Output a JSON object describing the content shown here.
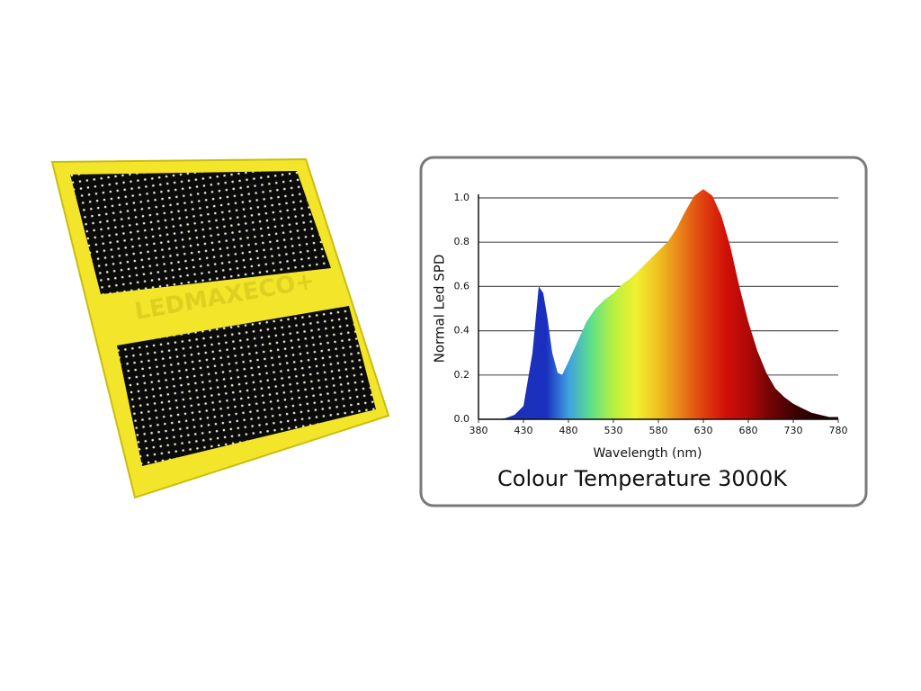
{
  "product": {
    "brand": "LEDMAXECO+"
  },
  "chart_data": {
    "type": "area",
    "title": "Colour Temperature 3000K",
    "x_label": "Wavelength (nm)",
    "y_label": "Normal Led SPD",
    "x": [
      380,
      390,
      400,
      410,
      420,
      430,
      440,
      447,
      452,
      457,
      462,
      468,
      473,
      480,
      490,
      500,
      510,
      520,
      530,
      540,
      550,
      560,
      570,
      580,
      590,
      600,
      610,
      620,
      630,
      640,
      650,
      660,
      670,
      680,
      690,
      700,
      710,
      720,
      730,
      740,
      750,
      760,
      770,
      780
    ],
    "values": [
      0,
      0,
      0,
      0.005,
      0.02,
      0.06,
      0.3,
      0.6,
      0.57,
      0.45,
      0.3,
      0.21,
      0.2,
      0.26,
      0.35,
      0.44,
      0.5,
      0.54,
      0.57,
      0.61,
      0.64,
      0.68,
      0.72,
      0.76,
      0.8,
      0.86,
      0.94,
      1.01,
      1.04,
      1.01,
      0.92,
      0.78,
      0.6,
      0.44,
      0.31,
      0.21,
      0.14,
      0.1,
      0.07,
      0.05,
      0.03,
      0.02,
      0.01,
      0.01
    ],
    "gradient": [
      "#1a2aa8",
      "#1a2aa8",
      "#1c30b8",
      "#1a2fc0",
      "#3fa0e0",
      "#5de08a",
      "#b8f040",
      "#f0f030",
      "#f0c020",
      "#e88018",
      "#e04010",
      "#d01008",
      "#b00808",
      "#700404",
      "#400202",
      "#250101",
      "#180000"
    ],
    "xlim": [
      380,
      780
    ],
    "xticks": [
      380,
      430,
      480,
      530,
      580,
      630,
      680,
      730,
      780
    ],
    "ylim": [
      0,
      1
    ],
    "yticks": [
      {
        "value": 0,
        "label": "0.0"
      },
      0.2,
      0.4,
      0.6,
      0.8,
      {
        "value": 1,
        "label": "1.0"
      }
    ],
    "grid": true
  }
}
